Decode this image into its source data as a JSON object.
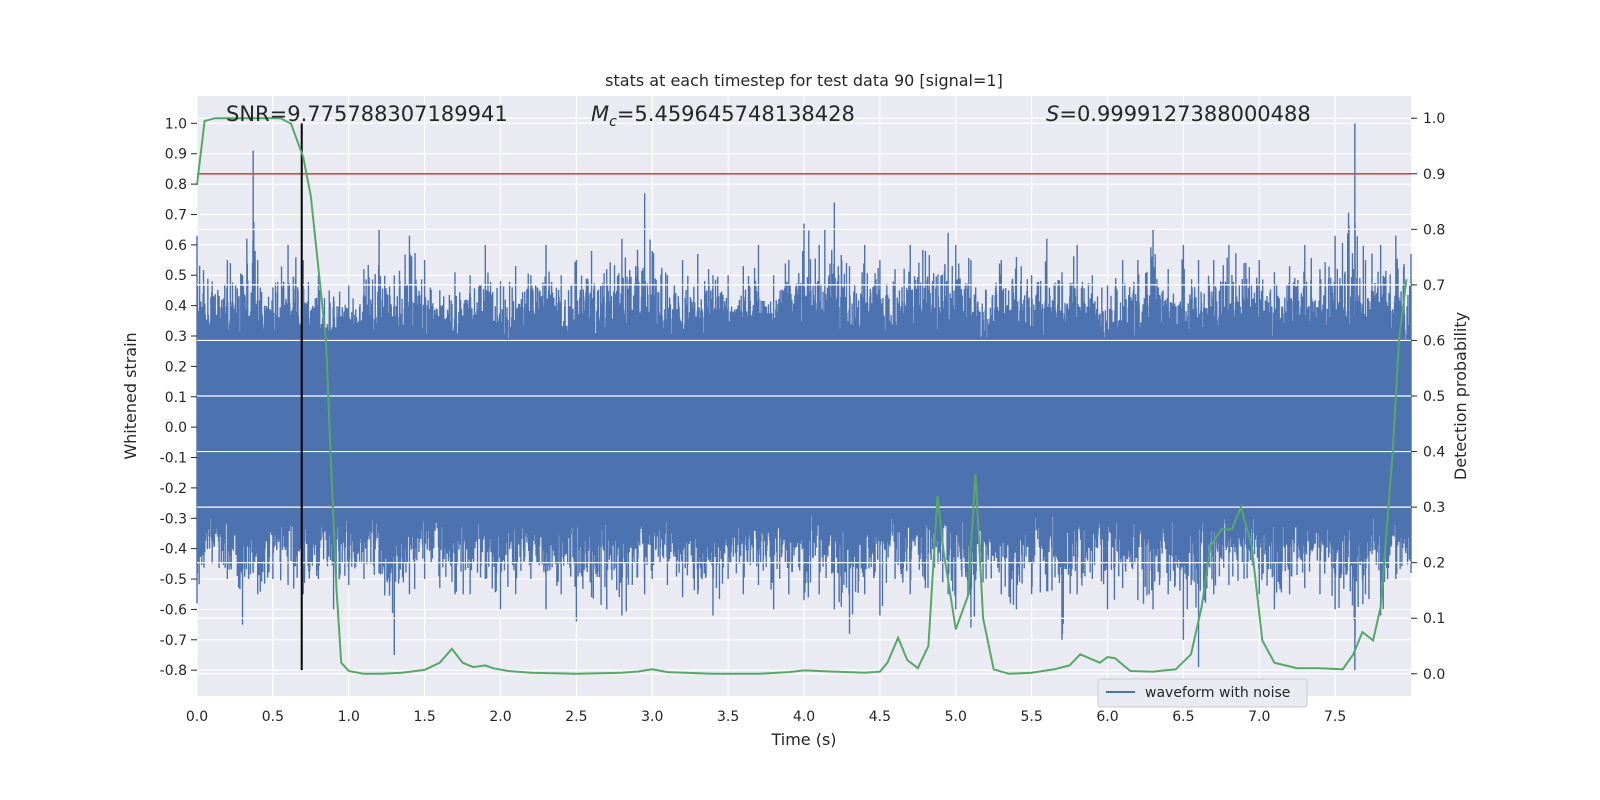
{
  "chart_data": {
    "type": "line",
    "title": "stats at each timestep for test data 90 [signal=1]",
    "xlabel": "Time (s)",
    "ylabel": "Whitened strain",
    "y2label": "Detection probability",
    "xlim": [
      0,
      8
    ],
    "ylim": [
      -0.885,
      1.09
    ],
    "y2lim": [
      -0.04,
      1.04
    ],
    "xticks": [
      "0.0",
      "0.5",
      "1.0",
      "1.5",
      "2.0",
      "2.5",
      "3.0",
      "3.5",
      "4.0",
      "4.5",
      "5.0",
      "5.5",
      "6.0",
      "6.5",
      "7.0",
      "7.5"
    ],
    "yticks": [
      "-0.8",
      "-0.7",
      "-0.6",
      "-0.5",
      "-0.4",
      "-0.3",
      "-0.2",
      "-0.1",
      "0.0",
      "0.1",
      "0.2",
      "0.3",
      "0.4",
      "0.5",
      "0.6",
      "0.7",
      "0.8",
      "0.9",
      "1.0"
    ],
    "y2ticks": [
      "0.0",
      "0.1",
      "0.2",
      "0.3",
      "0.4",
      "0.5",
      "0.6",
      "0.7",
      "0.8",
      "0.9",
      "1.0"
    ],
    "grid": true,
    "legend": {
      "position": "bottom-right",
      "entries": [
        "waveform with noise"
      ]
    },
    "annotations": {
      "snr": "SNR=9.775788307189941",
      "mc_symbol": "M",
      "mc_sub": "c",
      "mc_value": "=5.459645748138428",
      "s_symbol": "S",
      "s_value": "=0.9999127388000488"
    },
    "colors": {
      "strain": "#4c72b0",
      "probability": "#55a868",
      "threshold": "#c44e52",
      "marker": "#000000",
      "background": "#eaeaf2",
      "grid": "#ffffff"
    },
    "threshold": {
      "axis": "right",
      "y": 0.9
    },
    "marker_line": {
      "x": 0.69,
      "y_range": [
        -0.8,
        1.0
      ]
    },
    "strain_envelope": {
      "description_free": true,
      "x": [
        0.0,
        0.1,
        0.2,
        0.3,
        0.37,
        0.4,
        0.5,
        0.6,
        0.7,
        0.8,
        0.9,
        1.0,
        1.1,
        1.2,
        1.3,
        1.4,
        1.5,
        1.6,
        1.7,
        1.8,
        1.9,
        2.0,
        2.1,
        2.2,
        2.3,
        2.4,
        2.5,
        2.6,
        2.7,
        2.8,
        2.95,
        3.0,
        3.1,
        3.2,
        3.3,
        3.4,
        3.5,
        3.6,
        3.7,
        3.8,
        3.9,
        4.0,
        4.1,
        4.2,
        4.3,
        4.4,
        4.5,
        4.6,
        4.7,
        4.8,
        4.95,
        5.0,
        5.1,
        5.2,
        5.3,
        5.4,
        5.5,
        5.6,
        5.7,
        5.8,
        5.9,
        6.0,
        6.1,
        6.2,
        6.3,
        6.4,
        6.5,
        6.6,
        6.7,
        6.8,
        6.9,
        7.0,
        7.1,
        7.2,
        7.3,
        7.4,
        7.5,
        7.63,
        7.7,
        7.8,
        7.9,
        8.0
      ],
      "max": [
        0.63,
        0.48,
        0.55,
        0.5,
        0.91,
        0.55,
        0.46,
        0.6,
        0.55,
        0.5,
        0.43,
        0.47,
        0.52,
        0.65,
        0.5,
        0.63,
        0.55,
        0.45,
        0.51,
        0.5,
        0.6,
        0.48,
        0.53,
        0.5,
        0.6,
        0.5,
        0.55,
        0.58,
        0.52,
        0.62,
        0.77,
        0.58,
        0.5,
        0.55,
        0.57,
        0.5,
        0.5,
        0.53,
        0.6,
        0.5,
        0.55,
        0.67,
        0.6,
        0.74,
        0.53,
        0.6,
        0.55,
        0.52,
        0.6,
        0.58,
        0.64,
        0.6,
        0.55,
        0.45,
        0.55,
        0.56,
        0.5,
        0.62,
        0.51,
        0.6,
        0.5,
        0.47,
        0.55,
        0.55,
        0.65,
        0.52,
        0.6,
        0.55,
        0.55,
        0.6,
        0.54,
        0.55,
        0.51,
        0.53,
        0.6,
        0.52,
        0.63,
        1.0,
        0.55,
        0.6,
        0.63,
        0.57
      ],
      "min": [
        -0.58,
        -0.45,
        -0.5,
        -0.65,
        -0.48,
        -0.55,
        -0.5,
        -0.52,
        -0.55,
        -0.5,
        -0.6,
        -0.52,
        -0.5,
        -0.48,
        -0.75,
        -0.55,
        -0.5,
        -0.53,
        -0.55,
        -0.55,
        -0.5,
        -0.6,
        -0.55,
        -0.5,
        -0.6,
        -0.55,
        -0.64,
        -0.56,
        -0.6,
        -0.62,
        -0.55,
        -0.5,
        -0.52,
        -0.56,
        -0.55,
        -0.62,
        -0.5,
        -0.55,
        -0.52,
        -0.6,
        -0.55,
        -0.57,
        -0.55,
        -0.6,
        -0.68,
        -0.55,
        -0.62,
        -0.5,
        -0.55,
        -0.53,
        -0.55,
        -0.6,
        -0.66,
        -0.5,
        -0.55,
        -0.6,
        -0.55,
        -0.54,
        -0.7,
        -0.55,
        -0.5,
        -0.6,
        -0.53,
        -0.57,
        -0.6,
        -0.55,
        -0.7,
        -0.79,
        -0.55,
        -0.52,
        -0.5,
        -0.55,
        -0.6,
        -0.55,
        -0.53,
        -0.55,
        -0.6,
        -0.8,
        -0.55,
        -0.62,
        -0.5,
        -0.48
      ]
    },
    "series": [
      {
        "name": "waveform with noise",
        "axis": "left",
        "note_free": true
      },
      {
        "name": "",
        "axis": "right",
        "x": [
          0.0,
          0.05,
          0.12,
          0.25,
          0.4,
          0.55,
          0.62,
          0.7,
          0.75,
          0.85,
          0.88,
          0.92,
          0.95,
          1.0,
          1.1,
          1.2,
          1.35,
          1.5,
          1.6,
          1.68,
          1.75,
          1.82,
          1.9,
          1.95,
          2.05,
          2.2,
          2.5,
          2.8,
          2.9,
          3.0,
          3.1,
          3.4,
          3.7,
          3.9,
          4.0,
          4.2,
          4.4,
          4.5,
          4.55,
          4.62,
          4.68,
          4.75,
          4.82,
          4.88,
          4.92,
          5.0,
          5.08,
          5.13,
          5.18,
          5.25,
          5.35,
          5.5,
          5.65,
          5.75,
          5.82,
          5.88,
          5.95,
          6.0,
          6.05,
          6.15,
          6.3,
          6.45,
          6.55,
          6.62,
          6.68,
          6.75,
          6.82,
          6.88,
          6.95,
          7.02,
          7.1,
          7.25,
          7.4,
          7.55,
          7.62,
          7.68,
          7.75,
          7.8,
          7.88,
          7.92,
          7.97
        ],
        "values": [
          0.88,
          0.995,
          1.0,
          1.0,
          1.0,
          1.0,
          0.99,
          0.93,
          0.86,
          0.6,
          0.4,
          0.15,
          0.02,
          0.005,
          0.0,
          0.0,
          0.002,
          0.007,
          0.02,
          0.045,
          0.02,
          0.012,
          0.015,
          0.01,
          0.005,
          0.002,
          0.0,
          0.002,
          0.004,
          0.008,
          0.003,
          0.0,
          0.0,
          0.003,
          0.006,
          0.004,
          0.002,
          0.004,
          0.02,
          0.065,
          0.025,
          0.01,
          0.05,
          0.32,
          0.22,
          0.08,
          0.14,
          0.36,
          0.1,
          0.008,
          0.0,
          0.002,
          0.008,
          0.015,
          0.035,
          0.028,
          0.02,
          0.03,
          0.028,
          0.005,
          0.004,
          0.008,
          0.035,
          0.12,
          0.23,
          0.26,
          0.26,
          0.3,
          0.23,
          0.06,
          0.02,
          0.01,
          0.01,
          0.008,
          0.035,
          0.075,
          0.06,
          0.12,
          0.4,
          0.6,
          0.71
        ]
      }
    ]
  }
}
